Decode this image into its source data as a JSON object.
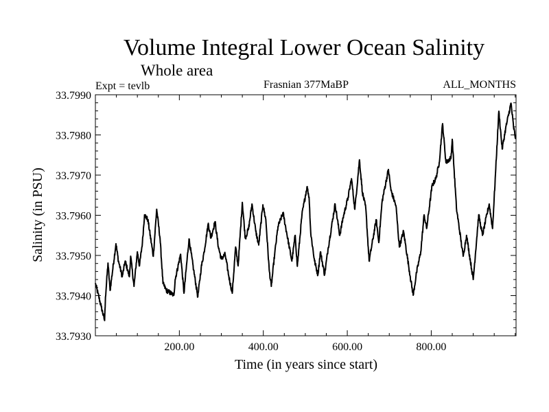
{
  "chart_data": {
    "type": "line",
    "title": "Volume Integral Lower Ocean Salinity",
    "subtitle": "Whole area",
    "annotations": {
      "left": "Expt = tevlb",
      "center": "Frasnian 377MaBP",
      "right": "ALL_MONTHS"
    },
    "xlabel": "Time (in years since start)",
    "ylabel": "Salinity (in PSU)",
    "xlim": [
      0,
      1002
    ],
    "ylim": [
      33.793,
      33.799
    ],
    "x_ticks": [
      200,
      400,
      600,
      800
    ],
    "x_tick_labels": [
      "200.00",
      "400.00",
      "600.00",
      "800.00"
    ],
    "x_minor_step": 50,
    "y_ticks": [
      33.793,
      33.794,
      33.795,
      33.796,
      33.797,
      33.798,
      33.799
    ],
    "y_tick_labels": [
      "33.7930",
      "33.7940",
      "33.7950",
      "33.7960",
      "33.7970",
      "33.7980",
      "33.7990"
    ],
    "y_minor_step": 0.0002,
    "grid": false,
    "legend": "none",
    "line_color": "#000000",
    "series": [
      {
        "name": "Salinity",
        "x": [
          0,
          6,
          14,
          22,
          24,
          30,
          35,
          49,
          55,
          64,
          71,
          81,
          84,
          92,
          100,
          105,
          112,
          117,
          125,
          138,
          146,
          154,
          161,
          169,
          187,
          190,
          203,
          211,
          223,
          234,
          244,
          252,
          259,
          269,
          275,
          285,
          293,
          300,
          309,
          318,
          326,
          334,
          340,
          350,
          357,
          365,
          373,
          382,
          389,
          399,
          406,
          414,
          419,
          427,
          435,
          447,
          455,
          468,
          476,
          481,
          492,
          504,
          509,
          513,
          522,
          530,
          536,
          546,
          554,
          571,
          582,
          590,
          602,
          610,
          618,
          629,
          636,
          644,
          652,
          669,
          675,
          683,
          698,
          704,
          716,
          724,
          734,
          750,
          757,
          765,
          775,
          783,
          789,
          802,
          811,
          819,
          827,
          835,
          847,
          850,
          860,
          876,
          884,
          900,
          913,
          922,
          938,
          946,
          953,
          961,
          969,
          977,
          990,
          996,
          1001
        ],
        "y": [
          33.7943,
          33.79406,
          33.79372,
          33.79338,
          33.79396,
          33.79481,
          33.79413,
          33.79529,
          33.79486,
          33.79447,
          33.79486,
          33.79447,
          33.79498,
          33.79423,
          33.79509,
          33.79474,
          33.79532,
          33.79601,
          33.79589,
          33.79498,
          33.79615,
          33.79543,
          33.7943,
          33.79413,
          33.79401,
          33.7944,
          33.79503,
          33.79406,
          33.79541,
          33.79464,
          33.79397,
          33.79469,
          33.79509,
          33.7958,
          33.79543,
          33.79584,
          33.79521,
          33.79491,
          33.79503,
          33.79447,
          33.79406,
          33.79521,
          33.79474,
          33.79632,
          33.79543,
          33.79567,
          33.79628,
          33.7956,
          33.79526,
          33.79626,
          33.79589,
          33.79464,
          33.79423,
          33.79503,
          33.79572,
          33.79606,
          33.7956,
          33.79486,
          33.7955,
          33.79473,
          33.79601,
          33.79671,
          33.79645,
          33.79555,
          33.79486,
          33.79452,
          33.79509,
          33.79452,
          33.79515,
          33.79628,
          33.7955,
          33.79594,
          33.79645,
          33.79691,
          33.79615,
          33.79738,
          33.79657,
          33.79618,
          33.79486,
          33.79589,
          33.79532,
          33.79635,
          33.79714,
          33.79662,
          33.79623,
          33.79521,
          33.7956,
          33.79447,
          33.79401,
          33.79457,
          33.79509,
          33.79601,
          33.79567,
          33.79674,
          33.79691,
          33.79731,
          33.79828,
          33.79731,
          33.79743,
          33.79789,
          33.79618,
          33.79498,
          33.7955,
          33.7944,
          33.79601,
          33.7955,
          33.79628,
          33.79567,
          33.79703,
          33.79859,
          33.79765,
          33.79815,
          33.79879,
          33.7982,
          33.79791
        ]
      }
    ]
  }
}
